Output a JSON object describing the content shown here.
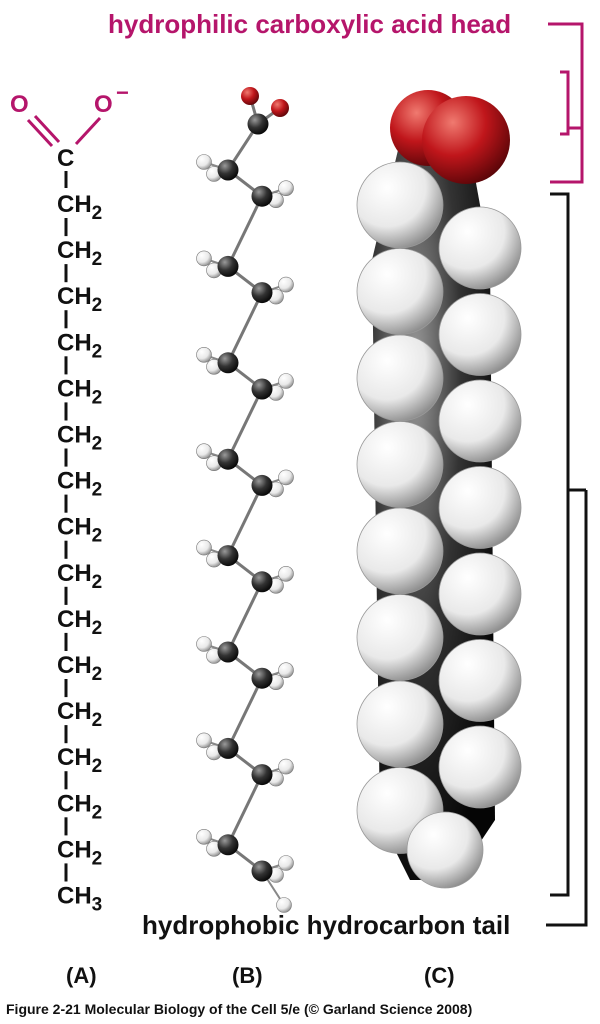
{
  "title_head": "hydrophilic carboxylic acid head",
  "title_tail": "hydrophobic hydrocarbon tail",
  "formula": {
    "o_left": "O",
    "o_right": "O",
    "charge": "−",
    "carbon": "C",
    "ch2": "CH",
    "ch3": "CH",
    "sub2": "2",
    "sub3": "3",
    "ch2_count": 15
  },
  "panel_labels": {
    "a": "(A)",
    "b": "(B)",
    "c": "(C)"
  },
  "caption": "Figure 2-21  Molecular Biology of the Cell 5/e (© Garland Science 2008)",
  "colors": {
    "head": "#b5156b",
    "text": "#111111",
    "oxygen": "#c0161b",
    "carbon": "#2a2a2a",
    "hydrogen": "#f2f2f2"
  },
  "icons": [
    "ball-and-stick-model",
    "space-filling-model"
  ]
}
